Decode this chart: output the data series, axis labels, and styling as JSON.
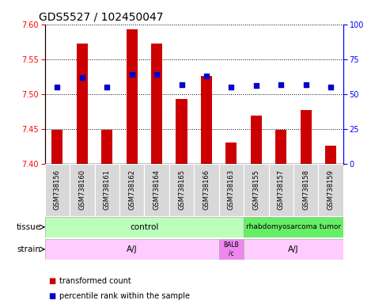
{
  "title": "GDS5527 / 102450047",
  "samples": [
    "GSM738156",
    "GSM738160",
    "GSM738161",
    "GSM738162",
    "GSM738164",
    "GSM738165",
    "GSM738166",
    "GSM738163",
    "GSM738155",
    "GSM738157",
    "GSM738158",
    "GSM738159"
  ],
  "bar_values": [
    7.449,
    7.573,
    7.449,
    7.593,
    7.573,
    7.493,
    7.526,
    7.431,
    7.469,
    7.449,
    7.477,
    7.427
  ],
  "bar_base": 7.4,
  "percentile_values": [
    55,
    62,
    55,
    64,
    64,
    57,
    63,
    55,
    56,
    57,
    57,
    55
  ],
  "ylim_left": [
    7.4,
    7.6
  ],
  "ylim_right": [
    0,
    100
  ],
  "yticks_left": [
    7.4,
    7.45,
    7.5,
    7.55,
    7.6
  ],
  "yticks_right": [
    0,
    25,
    50,
    75,
    100
  ],
  "bar_color": "#cc0000",
  "dot_color": "#0000cc",
  "tissue_control_samples": 8,
  "tissue_control_label": "control",
  "tissue_tumor_label": "rhabdomyosarcoma tumor",
  "tissue_control_color": "#bbffbb",
  "tissue_tumor_color": "#66ee66",
  "strain_aj1_samples": 7,
  "strain_balb_samples": 1,
  "strain_aj2_samples": 4,
  "strain_aj_label": "A/J",
  "strain_balb_label": "BALB\n/c",
  "strain_aj_color": "#ffccff",
  "strain_balb_color": "#ee88ee",
  "legend_bar_label": "transformed count",
  "legend_dot_label": "percentile rank within the sample",
  "bg_color": "#ffffff",
  "plot_bg": "#ffffff",
  "title_fontsize": 10,
  "tick_fontsize": 7,
  "sample_fontsize": 6,
  "label_fontsize": 7.5
}
